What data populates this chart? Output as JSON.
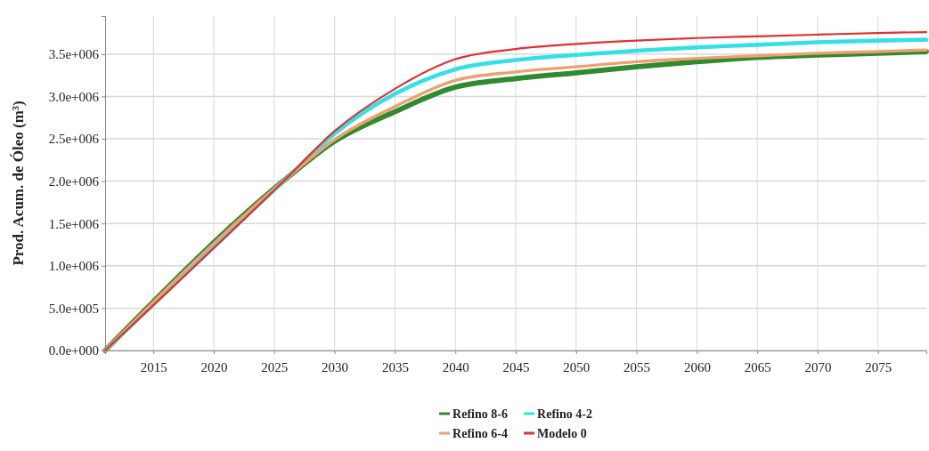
{
  "chart_data": {
    "type": "line",
    "ylabel": "Prod. Acum. de Óleo (m³)",
    "xlim": [
      2011,
      2079
    ],
    "xticks": [
      2015,
      2020,
      2025,
      2030,
      2035,
      2040,
      2045,
      2050,
      2055,
      2060,
      2065,
      2070,
      2075
    ],
    "ylim": [
      0,
      3950000
    ],
    "yticks": [
      {
        "value": 0,
        "label": "0.0e+000"
      },
      {
        "value": 500000,
        "label": "5.0e+005"
      },
      {
        "value": 1000000,
        "label": "1.0e+006"
      },
      {
        "value": 1500000,
        "label": "1.5e+006"
      },
      {
        "value": 2000000,
        "label": "2.0e+006"
      },
      {
        "value": 2500000,
        "label": "2.5e+006"
      },
      {
        "value": 3000000,
        "label": "3.0e+006"
      },
      {
        "value": 3500000,
        "label": "3.5e+006"
      }
    ],
    "x": [
      2011,
      2026,
      2030,
      2035,
      2040,
      2045,
      2050,
      2055,
      2060,
      2065,
      2070,
      2075,
      2079
    ],
    "grid": true,
    "legend": "bottom",
    "marker": "none",
    "line_style": "solid",
    "series": [
      {
        "name": "Refino 8-6",
        "color": "#2e8b2e",
        "values": [
          0,
          2030000,
          2470000,
          2820000,
          3110000,
          3210000,
          3280000,
          3350000,
          3410000,
          3460000,
          3490000,
          3510000,
          3530000
        ]
      },
      {
        "name": "Refino 4-2",
        "color": "#33e0e8",
        "values": [
          0,
          2030000,
          2560000,
          3030000,
          3320000,
          3430000,
          3490000,
          3540000,
          3580000,
          3610000,
          3640000,
          3660000,
          3670000
        ]
      },
      {
        "name": "Refino 6-4",
        "color": "#f0a070",
        "values": [
          0,
          2030000,
          2490000,
          2880000,
          3190000,
          3290000,
          3350000,
          3410000,
          3450000,
          3480000,
          3510000,
          3530000,
          3550000
        ]
      },
      {
        "name": "Modelo 0",
        "color": "#e03030",
        "values": [
          0,
          2030000,
          2590000,
          3090000,
          3440000,
          3560000,
          3620000,
          3660000,
          3690000,
          3710000,
          3730000,
          3750000,
          3760000
        ]
      }
    ]
  }
}
